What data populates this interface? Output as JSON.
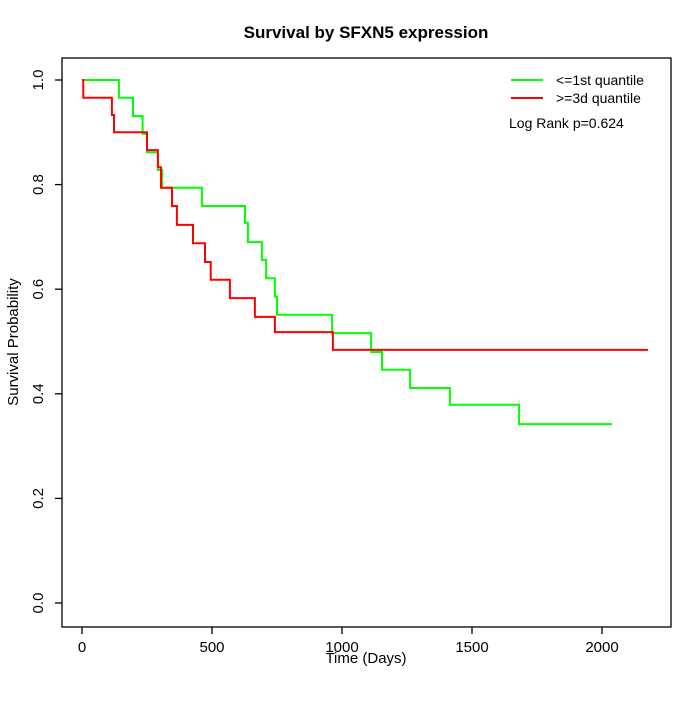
{
  "chart_data": {
    "type": "line",
    "subtype": "kaplan-meier-step-curves",
    "title": "Survival by SFXN5 expression",
    "xlabel": "Time (Days)",
    "ylabel": "Survival Probability",
    "x_ticks": [
      0,
      500,
      1000,
      1500,
      2000
    ],
    "y_ticks": [
      "0.0",
      "0.2",
      "0.4",
      "0.6",
      "0.8",
      "1.0"
    ],
    "xlim": [
      0,
      2265
    ],
    "ylim": [
      0.0,
      1.0
    ],
    "grid": false,
    "legend_position": "top-right",
    "annotation": "Log Rank p=0.624",
    "series": [
      {
        "name": "<=1st quantile",
        "color": "#00ff00",
        "end_day": 2038,
        "points": [
          [
            0,
            1.0
          ],
          [
            142,
            0.966
          ],
          [
            196,
            0.931
          ],
          [
            233,
            0.897
          ],
          [
            250,
            0.862
          ],
          [
            292,
            0.828
          ],
          [
            308,
            0.794
          ],
          [
            461,
            0.759
          ],
          [
            627,
            0.727
          ],
          [
            638,
            0.69
          ],
          [
            692,
            0.656
          ],
          [
            708,
            0.621
          ],
          [
            742,
            0.586
          ],
          [
            750,
            0.551
          ],
          [
            962,
            0.516
          ],
          [
            1112,
            0.48
          ],
          [
            1154,
            0.446
          ],
          [
            1262,
            0.411
          ],
          [
            1415,
            0.379
          ],
          [
            1681,
            0.342
          ]
        ]
      },
      {
        "name": ">=3d quantile",
        "color": "#ff0000",
        "end_day": 2177,
        "points": [
          [
            0,
            1.0
          ],
          [
            5,
            0.966
          ],
          [
            115,
            0.933
          ],
          [
            123,
            0.9
          ],
          [
            250,
            0.866
          ],
          [
            292,
            0.833
          ],
          [
            304,
            0.794
          ],
          [
            346,
            0.759
          ],
          [
            365,
            0.723
          ],
          [
            427,
            0.688
          ],
          [
            473,
            0.652
          ],
          [
            495,
            0.618
          ],
          [
            569,
            0.583
          ],
          [
            665,
            0.547
          ],
          [
            742,
            0.518
          ],
          [
            965,
            0.484
          ]
        ]
      }
    ]
  }
}
